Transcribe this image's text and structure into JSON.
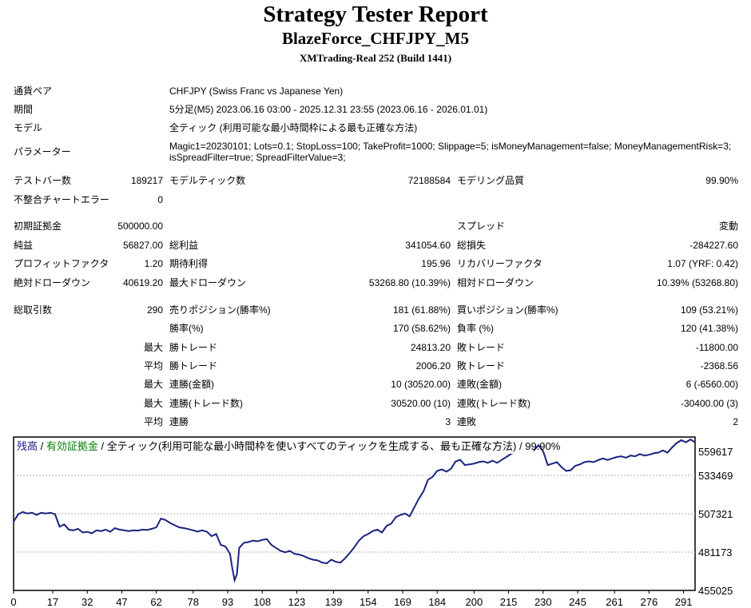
{
  "report": {
    "title": "Strategy Tester Report",
    "expert": "BlazeForce_CHFJPY_M5",
    "server": "XMTrading-Real 252 (Build 1441)"
  },
  "settings": [
    {
      "label": "通貨ペア",
      "value": "CHFJPY (Swiss Franc vs Japanese Yen)"
    },
    {
      "label": "期間",
      "value": "5分足(M5) 2023.06.16 03:00 - 2025.12.31 23:55 (2023.06.16 - 2026.01.01)"
    },
    {
      "label": "モデル",
      "value": "全ティック (利用可能な最小時間枠による最も正確な方法)"
    },
    {
      "label": "パラメーター",
      "value_line1": "Magic1=20230101; Lots=0.1; StopLoss=100; TakeProfit=1000; Slippage=5; isMoneyManagement=false; MoneyManagementRisk=3;",
      "value_line2": "isSpreadFilter=true; SpreadFilterValue=3;"
    }
  ],
  "stats": {
    "bars_label": "テストバー数",
    "bars": "189217",
    "ticks_label": "モデルティック数",
    "ticks": "72188584",
    "quality_label": "モデリング品質",
    "quality": "99.90%",
    "errors_label": "不整合チャートエラー",
    "errors": "0",
    "deposit_label": "初期証拠金",
    "deposit": "500000.00",
    "spread_label": "スプレッド",
    "spread": "変動",
    "net_label": "純益",
    "net": "56827.00",
    "gross_profit_label": "総利益",
    "gross_profit": "341054.60",
    "gross_loss_label": "総損失",
    "gross_loss": "-284227.60",
    "pf_label": "プロフィットファクタ",
    "pf": "1.20",
    "expected_label": "期待利得",
    "expected": "195.96",
    "recovery_label": "リカバリーファクタ",
    "recovery": "1.07 (YRF: 0.42)",
    "abs_dd_label": "絶対ドローダウン",
    "abs_dd": "40619.20",
    "max_dd_label": "最大ドローダウン",
    "max_dd": "53268.80 (10.39%)",
    "rel_dd_label": "相対ドローダウン",
    "rel_dd": "10.39% (53268.80)",
    "trades_label": "総取引数",
    "trades": "290",
    "short_label": "売りポジション(勝率%)",
    "short": "181 (61.88%)",
    "long_label": "買いポジション(勝率%)",
    "long": "109 (53.21%)",
    "winrate_label": "勝率(%)",
    "winrate": "170 (58.62%)",
    "lossrate_label": "負率 (%)",
    "lossrate": "120 (41.38%)",
    "max_label": "最大",
    "avg_label": "平均",
    "win_trade_label": "勝トレード",
    "loss_trade_label": "敗トレード",
    "max_win": "24813.20",
    "max_loss": "-11800.00",
    "avg_win": "2006.20",
    "avg_loss": "-2368.56",
    "consec_win_amt_label": "連勝(金額)",
    "consec_win_amt": "10 (30520.00)",
    "consec_loss_amt_label": "連敗(金額)",
    "consec_loss_amt": "6 (-6560.00)",
    "consec_win_trd_label": "連勝(トレード数)",
    "consec_win_trd": "30520.00 (10)",
    "consec_loss_trd_label": "連敗(トレード数)",
    "consec_loss_trd": "-30400.00 (3)",
    "avg_consec_win_label": "連勝",
    "avg_consec_win": "3",
    "avg_consec_loss_label": "連敗",
    "avg_consec_loss": "2"
  },
  "chart_legend": {
    "balance": "残高",
    "sep1": " / ",
    "equity": "有効証拠金",
    "sep2": " / ",
    "desc": "全ティック(利用可能な最小時間枠を使いすべてのティックを生成する、最も正確な方法)",
    "sep3": " / ",
    "quality": "99.90%",
    "balance_color": "#1a1a8c",
    "equity_color": "#008000",
    "line_color": "#1a237e"
  },
  "chart_data": {
    "type": "line",
    "xticks": [
      "0",
      "17",
      "32",
      "47",
      "62",
      "78",
      "93",
      "108",
      "123",
      "139",
      "154",
      "169",
      "184",
      "200",
      "215",
      "230",
      "245",
      "261",
      "276",
      "291"
    ],
    "yticks": [
      "559617",
      "533469",
      "507321",
      "481173",
      "455025"
    ],
    "ylim": [
      455025,
      559617
    ],
    "xlim": [
      0,
      296
    ],
    "grid": true,
    "series": [
      {
        "name": "残高",
        "x": [
          0,
          2,
          4,
          6,
          8,
          10,
          12,
          14,
          16,
          18,
          20,
          22,
          24,
          26,
          28,
          30,
          32,
          34,
          36,
          38,
          40,
          42,
          44,
          46,
          48,
          50,
          52,
          54,
          56,
          58,
          60,
          62,
          64,
          66,
          68,
          70,
          72,
          74,
          76,
          78,
          80,
          82,
          84,
          86,
          88,
          90,
          92,
          94,
          95,
          96,
          97,
          98,
          100,
          102,
          104,
          106,
          108,
          110,
          112,
          114,
          116,
          118,
          120,
          122,
          124,
          126,
          128,
          130,
          132,
          134,
          136,
          138,
          140,
          142,
          144,
          146,
          148,
          150,
          152,
          154,
          156,
          158,
          160,
          162,
          164,
          166,
          168,
          170,
          172,
          174,
          176,
          178,
          180,
          182,
          184,
          186,
          188,
          190,
          192,
          194,
          196,
          198,
          200,
          202,
          204,
          206,
          208,
          210,
          212,
          214,
          216,
          218,
          220,
          222,
          224,
          226,
          228,
          230,
          232,
          234,
          236,
          238,
          240,
          242,
          244,
          246,
          248,
          250,
          252,
          254,
          256,
          258,
          260,
          262,
          264,
          266,
          268,
          270,
          272,
          274,
          276,
          278,
          280,
          282,
          284,
          286,
          288,
          290,
          292,
          294,
          296
        ],
        "y": [
          502000,
          507000,
          508500,
          507500,
          508000,
          506500,
          508000,
          507500,
          508000,
          507000,
          498500,
          500000,
          496500,
          496000,
          497000,
          494500,
          495000,
          494000,
          496000,
          495500,
          496500,
          495000,
          497500,
          496500,
          496000,
          495500,
          496000,
          495800,
          496500,
          496200,
          497000,
          498000,
          504000,
          503000,
          501000,
          499500,
          498000,
          497500,
          496800,
          496000,
          495200,
          496000,
          495000,
          492000,
          493500,
          486000,
          485000,
          480000,
          470000,
          462000,
          466000,
          484000,
          487500,
          488000,
          489000,
          488500,
          489500,
          490000,
          486000,
          484000,
          482000,
          481000,
          482000,
          480000,
          479500,
          478500,
          477000,
          476000,
          475500,
          474000,
          473500,
          476000,
          474500,
          474000,
          477000,
          480500,
          484500,
          489000,
          492000,
          493500,
          495500,
          496500,
          494500,
          499000,
          500500,
          505000,
          506500,
          507500,
          505500,
          511500,
          517500,
          522500,
          530500,
          532500,
          536500,
          537500,
          536000,
          538000,
          543000,
          544000,
          540500,
          541000,
          541500,
          542500,
          543000,
          542000,
          543500,
          542000,
          544000,
          546000,
          548000,
          549500,
          549000,
          550500,
          552000,
          550500,
          554000,
          550000,
          540500,
          541500,
          542500,
          539000,
          536500,
          537000,
          540000,
          541000,
          542500,
          543000,
          542500,
          544000,
          545000,
          544000,
          545000,
          546000,
          546500,
          545500,
          547000,
          546500,
          548000,
          547000,
          547500,
          548500,
          549000,
          550500,
          549000,
          552500,
          555500,
          557500,
          556000,
          558000,
          556000
        ]
      }
    ]
  }
}
